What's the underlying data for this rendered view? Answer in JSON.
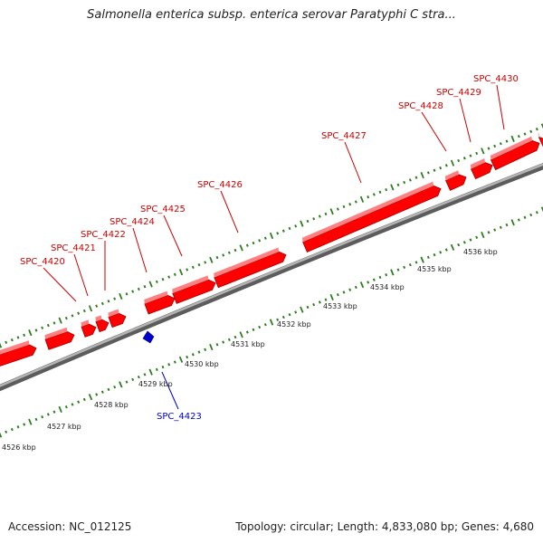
{
  "title": "Salmonella enterica subsp. enterica serovar Paratyphi C stra...",
  "footer": {
    "accession": "Accession: NC_012125",
    "summary": "Topology: circular; Length: 4,833,080 bp; Genes: 4,680"
  },
  "colors": {
    "forward_gene": "#ff0000",
    "reverse_gene": "#0000cc",
    "backbone": "#8c8c8c",
    "tick": "#2e7d1f"
  },
  "scale_labels": [
    "4526 kbp",
    "4527 kbp",
    "4528 kbp",
    "4529 kbp",
    "4530 kbp",
    "4531 kbp",
    "4532 kbp",
    "4533 kbp",
    "4534 kbp",
    "4535 kbp",
    "4536 kbp"
  ],
  "forward_gene_labels": [
    "SPC_4420",
    "SPC_4421",
    "SPC_4422",
    "SPC_4424",
    "SPC_4425",
    "SPC_4426",
    "SPC_4427",
    "SPC_4428",
    "SPC_4429",
    "SPC_4430"
  ],
  "reverse_gene_labels": [
    "SPC_4423"
  ]
}
